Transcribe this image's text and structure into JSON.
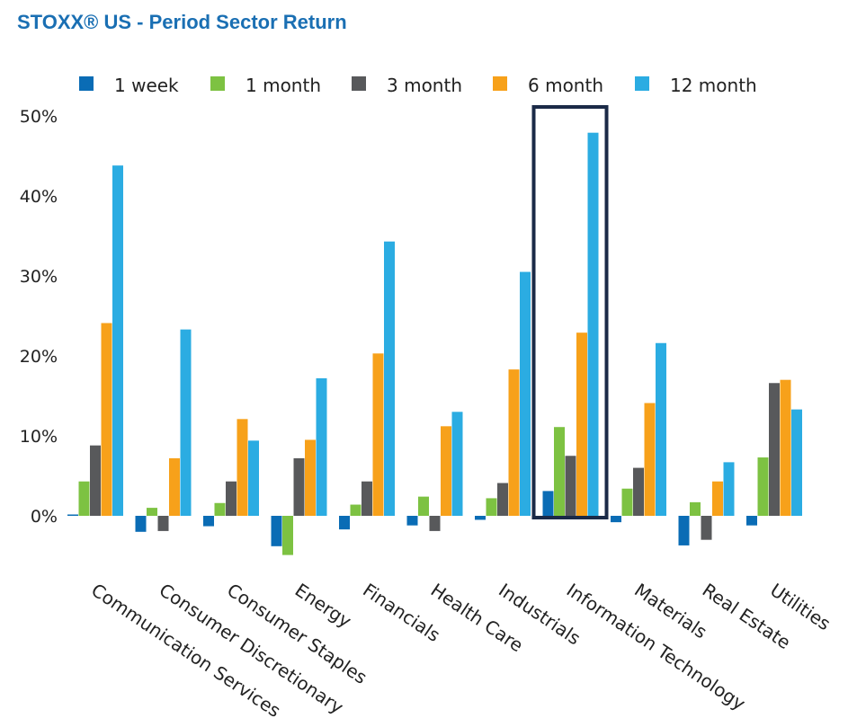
{
  "title": "STOXX® US - Period Sector Return",
  "colors": {
    "week": "#0a6cb5",
    "month": "#7dc242",
    "three_month": "#58595b",
    "six_month": "#f7a11a",
    "twelve_month": "#2bace2",
    "highlight_box": "#1b2a47"
  },
  "chart_data": {
    "type": "bar",
    "categories": [
      "Communication Services",
      "Consumer Discretionary",
      "Consumer Staples",
      "Energy",
      "Financials",
      "Health Care",
      "Industrials",
      "Information Technology",
      "Materials",
      "Real Estate",
      "Utilities"
    ],
    "series": [
      {
        "name": "1 week",
        "color": "#0a6cb5",
        "values": [
          0.1,
          -2.0,
          -1.3,
          -3.8,
          -1.7,
          -1.2,
          -0.5,
          3.1,
          -0.8,
          -3.7,
          -1.2
        ]
      },
      {
        "name": "1 month",
        "color": "#7dc242",
        "values": [
          4.3,
          1.0,
          1.6,
          -4.9,
          1.4,
          2.4,
          2.2,
          11.1,
          3.4,
          1.7,
          7.3
        ]
      },
      {
        "name": "3 month",
        "color": "#58595b",
        "values": [
          8.8,
          -1.9,
          4.3,
          7.2,
          4.3,
          -1.9,
          4.1,
          7.5,
          6.0,
          -3.0,
          16.6
        ]
      },
      {
        "name": "6 month",
        "color": "#f7a11a",
        "values": [
          24.1,
          7.2,
          12.1,
          9.5,
          20.3,
          11.2,
          18.3,
          22.9,
          14.1,
          4.3,
          17.0
        ]
      },
      {
        "name": "12 month",
        "color": "#2bace2",
        "values": [
          43.8,
          23.3,
          9.4,
          17.2,
          34.3,
          13.0,
          30.5,
          47.9,
          21.6,
          6.7,
          13.3
        ]
      }
    ],
    "ylim": [
      -5,
      50
    ],
    "yticks": [
      0,
      10,
      20,
      30,
      40,
      50
    ],
    "ytick_labels": [
      "0%",
      "10%",
      "20%",
      "30%",
      "40%",
      "50%"
    ],
    "grid": false,
    "legend": "top",
    "highlighted_category": "Information Technology"
  }
}
